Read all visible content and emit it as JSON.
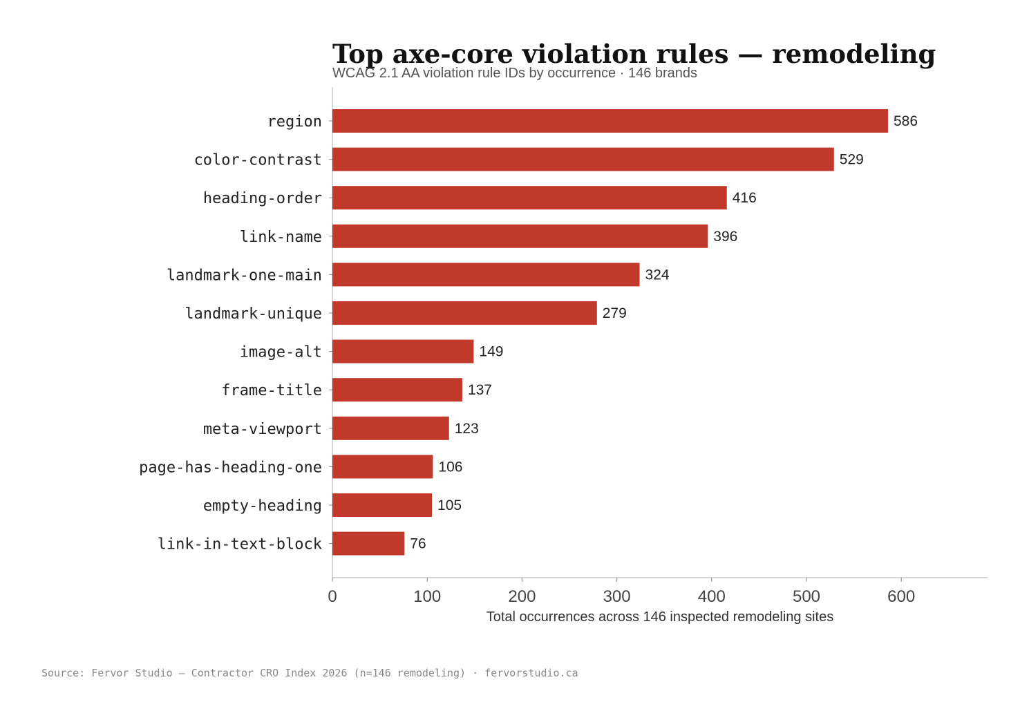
{
  "chart_data": {
    "type": "bar",
    "orientation": "horizontal",
    "title": "Top axe-core violation rules — remodeling",
    "subtitle": "WCAG 2.1 AA violation rule IDs by occurrence · 146 brands",
    "xlabel": "Total occurrences across 146 inspected remodeling sites",
    "ylabel": "",
    "categories": [
      "region",
      "color-contrast",
      "heading-order",
      "link-name",
      "landmark-one-main",
      "landmark-unique",
      "image-alt",
      "frame-title",
      "meta-viewport",
      "page-has-heading-one",
      "empty-heading",
      "link-in-text-block"
    ],
    "values": [
      586,
      529,
      416,
      396,
      324,
      279,
      149,
      137,
      123,
      106,
      105,
      76
    ],
    "xlim": [
      0,
      692
    ],
    "xticks": [
      0,
      100,
      200,
      300,
      400,
      500,
      600
    ],
    "grid": false,
    "bar_color": "#c0392b",
    "source": "Source: Fervor Studio — Contractor CRO Index 2026 (n=146 remodeling) · fervorstudio.ca"
  }
}
